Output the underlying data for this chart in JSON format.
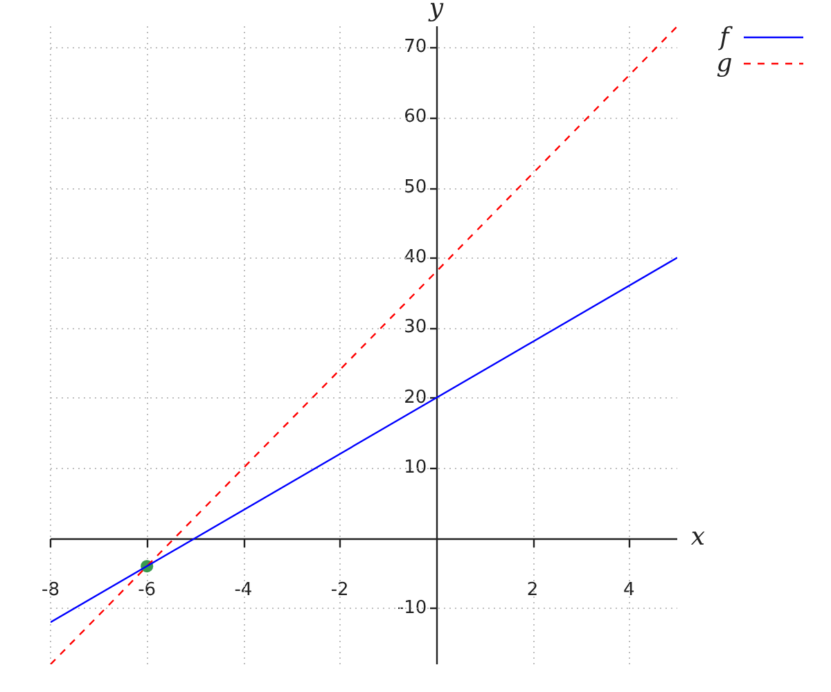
{
  "chart_data": {
    "type": "line",
    "xlabel": "x",
    "ylabel": "y",
    "series": [
      {
        "name": "f",
        "color": "#0000ff",
        "line_style": "solid",
        "x": [
          -8,
          5
        ],
        "values": [
          -12,
          40
        ]
      },
      {
        "name": "g",
        "color": "#ff0000",
        "line_style": "dashed",
        "x": [
          -8,
          5
        ],
        "values": [
          -18,
          73
        ]
      },
      {
        "type": "scatter",
        "color": "#3a9a4e",
        "marker": "circle",
        "x": [
          -6
        ],
        "values": [
          -4
        ]
      }
    ],
    "xlim": [
      -8,
      5
    ],
    "ylim": [
      -18,
      73
    ],
    "xticks": [
      -8,
      -6,
      -4,
      -2,
      2,
      4
    ],
    "yticks": [
      -10,
      10,
      20,
      30,
      40,
      50,
      60,
      70
    ],
    "grid": true,
    "legend": "top right"
  }
}
